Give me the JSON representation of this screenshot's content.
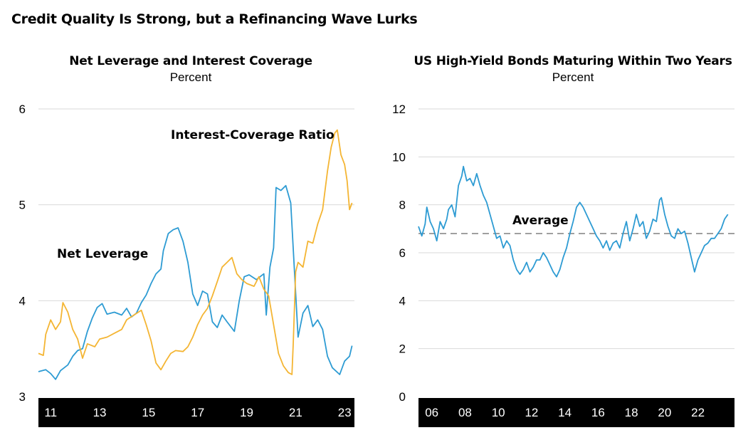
{
  "page_title": "Credit Quality Is Strong, but a Refinancing Wave Lurks",
  "colors": {
    "blue": "#2d9bd3",
    "orange": "#f4b533",
    "grid": "#d9d9d9",
    "axis_band": "#000000",
    "average": "#999999"
  },
  "chart_data": [
    {
      "type": "line",
      "title": "Net Leverage and Interest Coverage",
      "subtitle": "Percent",
      "ylim": [
        3,
        6
      ],
      "yticks": [
        "3",
        "4",
        "5",
        "6"
      ],
      "xlim": [
        2010.5,
        2023.4
      ],
      "xticks": [
        "11",
        "13",
        "15",
        "17",
        "19",
        "21",
        "23"
      ],
      "grid": true,
      "annotations": {
        "net_leverage": "Net Leverage",
        "interest_coverage": "Interest-Coverage Ratio"
      },
      "series": [
        {
          "name": "Net Leverage",
          "color": "#2d9bd3",
          "points": [
            [
              2010.5,
              3.26
            ],
            [
              2010.8,
              3.28
            ],
            [
              2011.0,
              3.24
            ],
            [
              2011.2,
              3.18
            ],
            [
              2011.4,
              3.27
            ],
            [
              2011.7,
              3.33
            ],
            [
              2011.9,
              3.42
            ],
            [
              2012.1,
              3.48
            ],
            [
              2012.3,
              3.5
            ],
            [
              2012.5,
              3.68
            ],
            [
              2012.7,
              3.82
            ],
            [
              2012.9,
              3.93
            ],
            [
              2013.1,
              3.97
            ],
            [
              2013.3,
              3.86
            ],
            [
              2013.6,
              3.88
            ],
            [
              2013.9,
              3.85
            ],
            [
              2014.1,
              3.92
            ],
            [
              2014.3,
              3.83
            ],
            [
              2014.5,
              3.87
            ],
            [
              2014.7,
              3.98
            ],
            [
              2014.9,
              4.06
            ],
            [
              2015.1,
              4.18
            ],
            [
              2015.3,
              4.28
            ],
            [
              2015.5,
              4.33
            ],
            [
              2015.6,
              4.52
            ],
            [
              2015.8,
              4.7
            ],
            [
              2016.0,
              4.74
            ],
            [
              2016.2,
              4.76
            ],
            [
              2016.4,
              4.62
            ],
            [
              2016.6,
              4.4
            ],
            [
              2016.8,
              4.07
            ],
            [
              2017.0,
              3.95
            ],
            [
              2017.2,
              4.1
            ],
            [
              2017.4,
              4.07
            ],
            [
              2017.6,
              3.78
            ],
            [
              2017.8,
              3.72
            ],
            [
              2018.0,
              3.85
            ],
            [
              2018.2,
              3.78
            ],
            [
              2018.5,
              3.68
            ],
            [
              2018.7,
              4.0
            ],
            [
              2018.9,
              4.25
            ],
            [
              2019.1,
              4.27
            ],
            [
              2019.4,
              4.22
            ],
            [
              2019.7,
              4.28
            ],
            [
              2019.8,
              3.85
            ],
            [
              2019.95,
              4.35
            ],
            [
              2020.1,
              4.55
            ],
            [
              2020.2,
              5.18
            ],
            [
              2020.4,
              5.15
            ],
            [
              2020.6,
              5.2
            ],
            [
              2020.8,
              5.02
            ],
            [
              2021.0,
              4.08
            ],
            [
              2021.1,
              3.62
            ],
            [
              2021.3,
              3.87
            ],
            [
              2021.5,
              3.95
            ],
            [
              2021.7,
              3.73
            ],
            [
              2021.9,
              3.8
            ],
            [
              2022.1,
              3.7
            ],
            [
              2022.3,
              3.42
            ],
            [
              2022.5,
              3.3
            ],
            [
              2022.8,
              3.23
            ],
            [
              2023.0,
              3.37
            ],
            [
              2023.2,
              3.42
            ],
            [
              2023.3,
              3.53
            ]
          ]
        },
        {
          "name": "Interest-Coverage Ratio",
          "color": "#f4b533",
          "points": [
            [
              2010.5,
              3.45
            ],
            [
              2010.7,
              3.43
            ],
            [
              2010.8,
              3.65
            ],
            [
              2011.0,
              3.8
            ],
            [
              2011.2,
              3.7
            ],
            [
              2011.4,
              3.78
            ],
            [
              2011.5,
              3.98
            ],
            [
              2011.7,
              3.88
            ],
            [
              2011.9,
              3.7
            ],
            [
              2012.1,
              3.6
            ],
            [
              2012.3,
              3.4
            ],
            [
              2012.5,
              3.55
            ],
            [
              2012.8,
              3.52
            ],
            [
              2013.0,
              3.6
            ],
            [
              2013.3,
              3.62
            ],
            [
              2013.6,
              3.66
            ],
            [
              2013.9,
              3.7
            ],
            [
              2014.1,
              3.8
            ],
            [
              2014.4,
              3.85
            ],
            [
              2014.7,
              3.9
            ],
            [
              2014.9,
              3.75
            ],
            [
              2015.1,
              3.58
            ],
            [
              2015.3,
              3.35
            ],
            [
              2015.5,
              3.28
            ],
            [
              2015.7,
              3.37
            ],
            [
              2015.9,
              3.45
            ],
            [
              2016.1,
              3.48
            ],
            [
              2016.4,
              3.47
            ],
            [
              2016.6,
              3.52
            ],
            [
              2016.8,
              3.62
            ],
            [
              2017.0,
              3.75
            ],
            [
              2017.2,
              3.85
            ],
            [
              2017.4,
              3.92
            ],
            [
              2017.6,
              4.05
            ],
            [
              2017.8,
              4.2
            ],
            [
              2018.0,
              4.35
            ],
            [
              2018.2,
              4.4
            ],
            [
              2018.4,
              4.45
            ],
            [
              2018.6,
              4.28
            ],
            [
              2018.8,
              4.22
            ],
            [
              2019.0,
              4.18
            ],
            [
              2019.3,
              4.15
            ],
            [
              2019.5,
              4.25
            ],
            [
              2019.7,
              4.12
            ],
            [
              2019.9,
              4.05
            ],
            [
              2020.1,
              3.75
            ],
            [
              2020.3,
              3.45
            ],
            [
              2020.5,
              3.32
            ],
            [
              2020.7,
              3.25
            ],
            [
              2020.85,
              3.23
            ],
            [
              2020.9,
              3.55
            ],
            [
              2021.0,
              4.3
            ],
            [
              2021.1,
              4.4
            ],
            [
              2021.3,
              4.35
            ],
            [
              2021.5,
              4.62
            ],
            [
              2021.7,
              4.6
            ],
            [
              2021.9,
              4.8
            ],
            [
              2022.1,
              4.95
            ],
            [
              2022.3,
              5.35
            ],
            [
              2022.45,
              5.6
            ],
            [
              2022.6,
              5.75
            ],
            [
              2022.7,
              5.78
            ],
            [
              2022.85,
              5.52
            ],
            [
              2023.0,
              5.42
            ],
            [
              2023.1,
              5.25
            ],
            [
              2023.2,
              4.95
            ],
            [
              2023.3,
              5.02
            ]
          ]
        }
      ]
    },
    {
      "type": "line",
      "title": "US High-Yield Bonds Maturing Within Two Years",
      "subtitle": "Percent",
      "ylim": [
        0,
        12
      ],
      "yticks": [
        "0",
        "2",
        "4",
        "6",
        "8",
        "10",
        "12"
      ],
      "xlim": [
        2005.2,
        2024.2
      ],
      "xticks": [
        "06",
        "08",
        "10",
        "12",
        "14",
        "16",
        "18",
        "20",
        "22"
      ],
      "grid": true,
      "average": 6.8,
      "annotations": {
        "average": "Average"
      },
      "series": [
        {
          "name": "US High-Yield Bonds Maturing Within Two Years",
          "color": "#2d9bd3",
          "points": [
            [
              2005.2,
              7.1
            ],
            [
              2005.4,
              6.7
            ],
            [
              2005.6,
              7.2
            ],
            [
              2005.7,
              7.9
            ],
            [
              2005.9,
              7.3
            ],
            [
              2006.1,
              7.0
            ],
            [
              2006.3,
              6.5
            ],
            [
              2006.5,
              7.3
            ],
            [
              2006.7,
              7.0
            ],
            [
              2006.9,
              7.4
            ],
            [
              2007.0,
              7.8
            ],
            [
              2007.2,
              8.0
            ],
            [
              2007.4,
              7.5
            ],
            [
              2007.6,
              8.8
            ],
            [
              2007.8,
              9.2
            ],
            [
              2007.9,
              9.6
            ],
            [
              2008.1,
              9.0
            ],
            [
              2008.3,
              9.1
            ],
            [
              2008.5,
              8.8
            ],
            [
              2008.7,
              9.3
            ],
            [
              2008.9,
              8.8
            ],
            [
              2009.1,
              8.4
            ],
            [
              2009.3,
              8.1
            ],
            [
              2009.5,
              7.6
            ],
            [
              2009.7,
              7.1
            ],
            [
              2009.9,
              6.6
            ],
            [
              2010.1,
              6.7
            ],
            [
              2010.3,
              6.2
            ],
            [
              2010.5,
              6.5
            ],
            [
              2010.7,
              6.3
            ],
            [
              2010.9,
              5.7
            ],
            [
              2011.1,
              5.3
            ],
            [
              2011.3,
              5.1
            ],
            [
              2011.5,
              5.3
            ],
            [
              2011.7,
              5.6
            ],
            [
              2011.9,
              5.2
            ],
            [
              2012.1,
              5.4
            ],
            [
              2012.3,
              5.7
            ],
            [
              2012.5,
              5.7
            ],
            [
              2012.7,
              6.0
            ],
            [
              2012.9,
              5.8
            ],
            [
              2013.1,
              5.5
            ],
            [
              2013.3,
              5.2
            ],
            [
              2013.5,
              5.0
            ],
            [
              2013.7,
              5.3
            ],
            [
              2013.9,
              5.8
            ],
            [
              2014.1,
              6.2
            ],
            [
              2014.3,
              6.8
            ],
            [
              2014.5,
              7.3
            ],
            [
              2014.7,
              7.9
            ],
            [
              2014.9,
              8.1
            ],
            [
              2015.1,
              7.9
            ],
            [
              2015.3,
              7.6
            ],
            [
              2015.5,
              7.3
            ],
            [
              2015.7,
              7.0
            ],
            [
              2015.9,
              6.7
            ],
            [
              2016.1,
              6.5
            ],
            [
              2016.3,
              6.2
            ],
            [
              2016.5,
              6.5
            ],
            [
              2016.7,
              6.1
            ],
            [
              2016.9,
              6.4
            ],
            [
              2017.1,
              6.5
            ],
            [
              2017.3,
              6.2
            ],
            [
              2017.5,
              6.8
            ],
            [
              2017.7,
              7.3
            ],
            [
              2017.9,
              6.5
            ],
            [
              2018.1,
              7.0
            ],
            [
              2018.3,
              7.6
            ],
            [
              2018.5,
              7.1
            ],
            [
              2018.7,
              7.3
            ],
            [
              2018.9,
              6.6
            ],
            [
              2019.1,
              6.9
            ],
            [
              2019.3,
              7.4
            ],
            [
              2019.5,
              7.3
            ],
            [
              2019.7,
              8.2
            ],
            [
              2019.8,
              8.3
            ],
            [
              2020.0,
              7.6
            ],
            [
              2020.2,
              7.1
            ],
            [
              2020.4,
              6.7
            ],
            [
              2020.6,
              6.6
            ],
            [
              2020.8,
              7.0
            ],
            [
              2021.0,
              6.8
            ],
            [
              2021.2,
              6.9
            ],
            [
              2021.4,
              6.4
            ],
            [
              2021.6,
              5.8
            ],
            [
              2021.8,
              5.2
            ],
            [
              2022.0,
              5.7
            ],
            [
              2022.2,
              6.0
            ],
            [
              2022.4,
              6.3
            ],
            [
              2022.6,
              6.4
            ],
            [
              2022.8,
              6.6
            ],
            [
              2023.0,
              6.6
            ],
            [
              2023.2,
              6.8
            ],
            [
              2023.4,
              7.0
            ],
            [
              2023.6,
              7.4
            ],
            [
              2023.8,
              7.6
            ]
          ]
        }
      ]
    }
  ]
}
